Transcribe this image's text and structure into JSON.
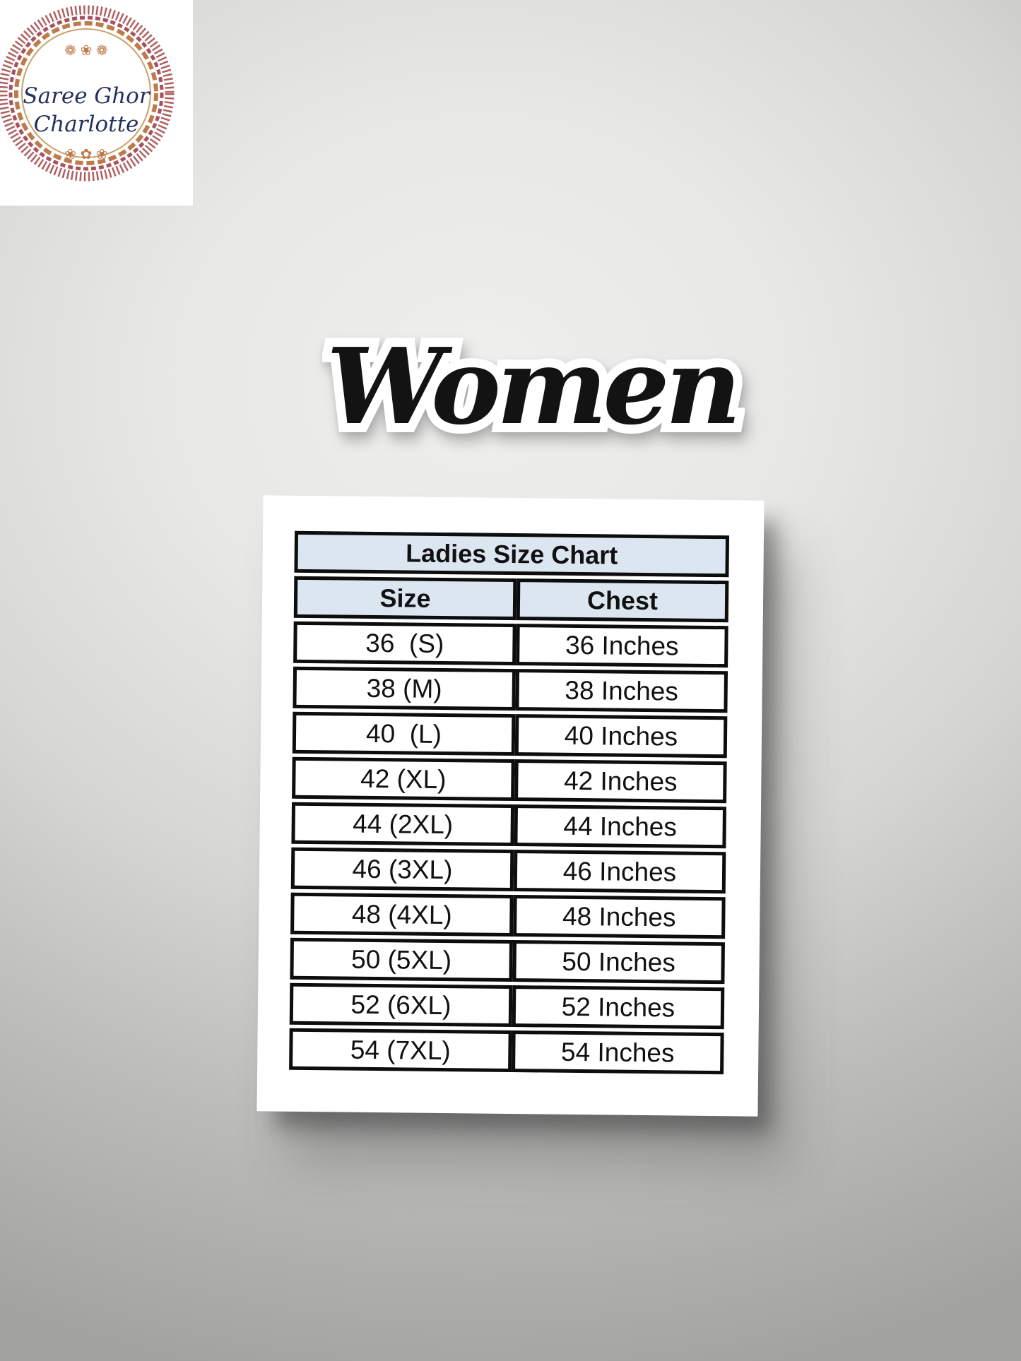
{
  "logo": {
    "brand_line1": "Saree Ghor",
    "brand_line2": "Charlotte",
    "ornament_top": "❁ ❀ ❁",
    "ornament_bottom": "❀ ✿ ❀"
  },
  "page_title": "Women",
  "chart_data": {
    "type": "table",
    "title": "Ladies Size Chart",
    "columns": [
      "Size",
      "Chest"
    ],
    "rows": [
      [
        "36  (S)",
        "36 Inches"
      ],
      [
        "38 (M)",
        "38 Inches"
      ],
      [
        "40  (L)",
        "40 Inches"
      ],
      [
        "42 (XL)",
        "42 Inches"
      ],
      [
        "44 (2XL)",
        "44 Inches"
      ],
      [
        "46 (3XL)",
        "46 Inches"
      ],
      [
        "48 (4XL)",
        "48 Inches"
      ],
      [
        "50 (5XL)",
        "50 Inches"
      ],
      [
        "52 (6XL)",
        "52 Inches"
      ],
      [
        "54 (7XL)",
        "54 Inches"
      ]
    ],
    "layout_hints": {
      "header_background": "#dce6f1",
      "row_background": "#ffffff",
      "border_color": "#0d0d0d",
      "title_spans_all_columns": true
    }
  },
  "colors": {
    "background_center": "#efefed",
    "background_edge": "#a2a2a0",
    "card_background": "#ffffff",
    "title_text": "#131313",
    "title_outline": "#ffffff",
    "logo_text": "#24305e",
    "logo_ring_outer": "#b06060",
    "logo_ring_inner": "#bd7a4a"
  }
}
